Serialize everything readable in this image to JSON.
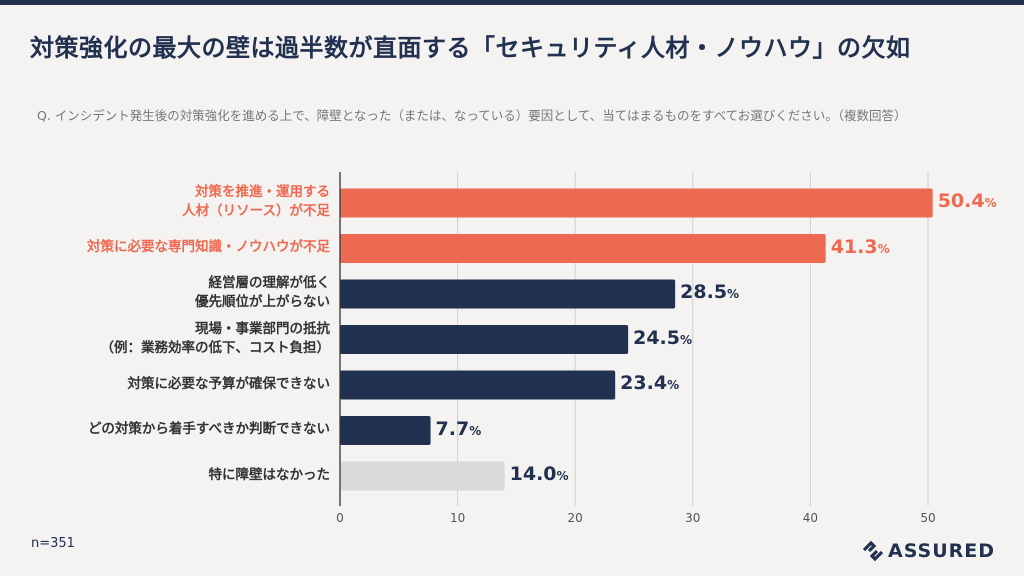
{
  "header": {
    "title": "対策強化の最大の壁は過半数が直面する「セキュリティ人材・ノウハウ」の欠如",
    "question": "Q. インシデント発生後の対策強化を進める上で、障壁となった（または、なっている）要因として、当てはまるものをすべてお選びください。（複数回答）"
  },
  "footer": {
    "sample_size": "n=351",
    "brand": "ASSURED"
  },
  "colors": {
    "highlight": "#ee6951",
    "primary": "#22314f",
    "neutral": "#d9d9d9",
    "grid": "#cfcfcf",
    "background": "#f4f3f1"
  },
  "chart_data": {
    "type": "bar",
    "orientation": "horizontal",
    "title": "対策強化の最大の壁は過半数が直面する「セキュリティ人材・ノウハウ」の欠如",
    "xlabel": "",
    "ylabel": "",
    "xlim": [
      0,
      55
    ],
    "xticks": [
      0,
      10,
      20,
      30,
      40,
      50
    ],
    "grid": true,
    "unit": "%",
    "categories": [
      [
        "対策を推進・運用する",
        "人材（リソース）が不足"
      ],
      [
        "対策に必要な専門知識・ノウハウが不足"
      ],
      [
        "経営層の理解が低く",
        "優先順位が上がらない"
      ],
      [
        "現場・事業部門の抵抗",
        "（例：業務効率の低下、コスト負担）"
      ],
      [
        "対策に必要な予算が確保できない"
      ],
      [
        "どの対策から着手すべきか判断できない"
      ],
      [
        "特に障壁はなかった"
      ]
    ],
    "values": [
      50.4,
      41.3,
      28.5,
      24.5,
      23.4,
      7.7,
      14.0
    ],
    "value_labels": [
      "50.4",
      "41.3",
      "28.5",
      "24.5",
      "23.4",
      "7.7",
      "14.0"
    ],
    "styles": [
      "highlight",
      "highlight",
      "primary",
      "primary",
      "primary",
      "primary",
      "neutral"
    ]
  }
}
